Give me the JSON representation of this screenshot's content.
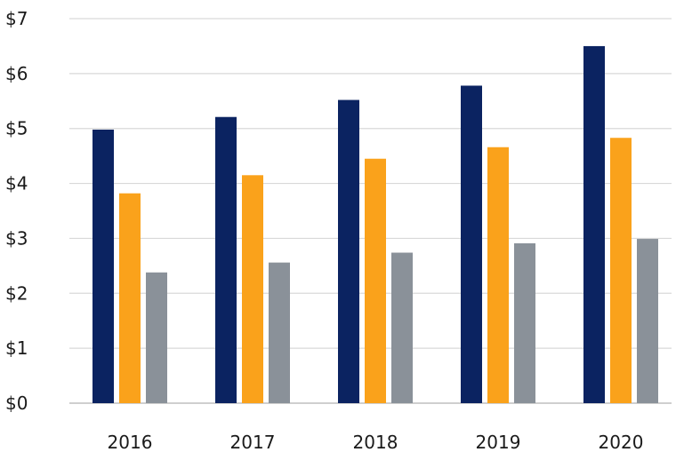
{
  "chart_data": {
    "type": "bar",
    "title": "",
    "xlabel": "",
    "ylabel": "",
    "categories": [
      "2016",
      "2017",
      "2018",
      "2019",
      "2020"
    ],
    "series": [
      {
        "values": [
          4.98,
          5.21,
          5.52,
          5.78,
          6.5
        ],
        "color": "#0b2361"
      },
      {
        "values": [
          3.82,
          4.15,
          4.45,
          4.66,
          4.83
        ],
        "color": "#faa21b"
      },
      {
        "values": [
          2.38,
          2.56,
          2.74,
          2.91,
          2.99
        ],
        "color": "#8a9199"
      }
    ],
    "ylim": [
      0,
      7
    ],
    "yticks": [
      0,
      1,
      2,
      3,
      4,
      5,
      6,
      7
    ],
    "ytick_labels": [
      "$0",
      "$1",
      "$2",
      "$3",
      "$4",
      "$5",
      "$6",
      "$7"
    ],
    "grid": true,
    "legend": "none"
  }
}
